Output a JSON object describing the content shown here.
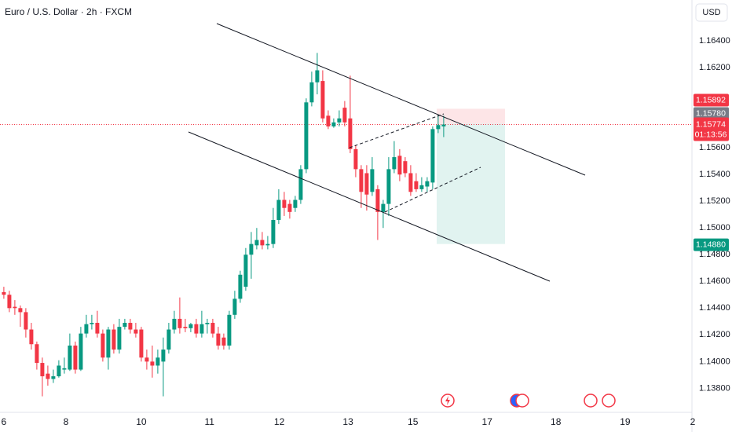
{
  "chart_data": {
    "type": "candlestick",
    "title": "Euro / U.S. Dollar · 2h · FXCM",
    "currency": "USD",
    "up_color": "#089981",
    "down_color": "#f23645",
    "grid": false,
    "open": [
      1.1452,
      1.145,
      1.1441,
      1.144,
      1.1437,
      1.1424,
      1.1413,
      1.1399,
      1.1391,
      1.1387,
      1.1389,
      1.1394,
      1.1394,
      1.1412,
      1.1394,
      1.1421,
      1.1428,
      1.1429,
      1.1421,
      1.1403,
      1.1424,
      1.1409,
      1.1426,
      1.1429,
      1.1424,
      1.1424,
      1.1403,
      1.14,
      1.1397,
      1.14,
      1.1409,
      1.1424,
      1.1432,
      1.1426,
      1.1425,
      1.1428,
      1.1421,
      1.1428,
      1.1429,
      1.1421,
      1.1418,
      1.1412,
      1.1435,
      1.1447,
      1.1456,
      1.148,
      1.1487,
      1.1491,
      1.1487,
      1.1488,
      1.1506,
      1.1521,
      1.1518,
      1.1515,
      1.1521,
      1.1544,
      1.1594,
      1.1609,
      1.161,
      1.1584,
      1.1576,
      1.1579,
      1.159,
      1.1582,
      1.1559,
      1.1544,
      1.1541,
      1.1527,
      1.1529,
      1.1512,
      1.1518,
      1.1544,
      1.1554,
      1.155,
      1.1541,
      1.1535,
      1.1529,
      1.1531,
      1.1534,
      1.1574,
      1.1576
    ],
    "high": [
      1.1456,
      1.1453,
      1.1446,
      1.1442,
      1.144,
      1.1429,
      1.1415,
      1.1403,
      1.1397,
      1.1394,
      1.1401,
      1.1403,
      1.1421,
      1.1415,
      1.1426,
      1.1435,
      1.1435,
      1.1438,
      1.1424,
      1.1426,
      1.1428,
      1.1432,
      1.1432,
      1.1432,
      1.1429,
      1.1426,
      1.1409,
      1.1412,
      1.1409,
      1.1418,
      1.1429,
      1.1438,
      1.1448,
      1.1432,
      1.1429,
      1.1432,
      1.1438,
      1.1432,
      1.1432,
      1.1426,
      1.1421,
      1.1438,
      1.1453,
      1.1468,
      1.1485,
      1.1497,
      1.15,
      1.1497,
      1.1494,
      1.1515,
      1.1529,
      1.1527,
      1.1521,
      1.1524,
      1.1547,
      1.1597,
      1.1617,
      1.1631,
      1.1618,
      1.1588,
      1.1582,
      1.1588,
      1.1595,
      1.1614,
      1.1562,
      1.1547,
      1.1547,
      1.1553,
      1.1532,
      1.1521,
      1.1553,
      1.1565,
      1.1559,
      1.1553,
      1.1547,
      1.1541,
      1.1538,
      1.1538,
      1.1576,
      1.1585,
      1.1584
    ],
    "low": [
      1.1447,
      1.1437,
      1.1435,
      1.1426,
      1.1418,
      1.1409,
      1.1394,
      1.1374,
      1.1382,
      1.1384,
      1.1388,
      1.1391,
      1.1393,
      1.1391,
      1.1393,
      1.1418,
      1.1424,
      1.1418,
      1.14,
      1.1394,
      1.1406,
      1.1406,
      1.1424,
      1.1421,
      1.1418,
      1.14,
      1.1394,
      1.1388,
      1.1391,
      1.1374,
      1.1406,
      1.1421,
      1.1421,
      1.1422,
      1.1422,
      1.1418,
      1.1418,
      1.1421,
      1.1418,
      1.1409,
      1.1409,
      1.1409,
      1.1432,
      1.1444,
      1.1453,
      1.1462,
      1.1484,
      1.1484,
      1.1484,
      1.1485,
      1.1503,
      1.1509,
      1.1507,
      1.1512,
      1.1518,
      1.1541,
      1.1591,
      1.16,
      1.1579,
      1.1574,
      1.1575,
      1.1576,
      1.1576,
      1.1556,
      1.1538,
      1.1515,
      1.1513,
      1.1524,
      1.1491,
      1.15,
      1.1509,
      1.1541,
      1.1535,
      1.1538,
      1.1524,
      1.1527,
      1.1527,
      1.1527,
      1.1529,
      1.1571,
      1.1568
    ],
    "close": [
      1.145,
      1.144,
      1.144,
      1.1437,
      1.1424,
      1.1413,
      1.1399,
      1.1389,
      1.1387,
      1.1389,
      1.1397,
      1.1395,
      1.1412,
      1.1394,
      1.1421,
      1.1428,
      1.1429,
      1.1421,
      1.1403,
      1.1424,
      1.1409,
      1.1426,
      1.1429,
      1.1424,
      1.1421,
      1.1403,
      1.14,
      1.1397,
      1.1403,
      1.1409,
      1.1424,
      1.1432,
      1.1425,
      1.1425,
      1.1428,
      1.1421,
      1.1428,
      1.1429,
      1.1421,
      1.1412,
      1.1412,
      1.1435,
      1.1447,
      1.1465,
      1.148,
      1.1488,
      1.1491,
      1.1487,
      1.1488,
      1.1506,
      1.1521,
      1.1515,
      1.1512,
      1.1521,
      1.1544,
      1.1594,
      1.1609,
      1.1618,
      1.1582,
      1.1576,
      1.1579,
      1.1582,
      1.1579,
      1.1559,
      1.1544,
      1.1527,
      1.1525,
      1.1544,
      1.1512,
      1.1518,
      1.1544,
      1.1553,
      1.154,
      1.1541,
      1.1527,
      1.1529,
      1.1532,
      1.1535,
      1.1574,
      1.1577,
      1.15774
    ],
    "xlim": [
      -0.7,
      125.3
    ],
    "xticks": [
      {
        "value": 0,
        "label": "6"
      },
      {
        "value": 11.3,
        "label": "8"
      },
      {
        "value": 25,
        "label": "10"
      },
      {
        "value": 37.4,
        "label": "11"
      },
      {
        "value": 50.1,
        "label": "12"
      },
      {
        "value": 62.6,
        "label": "13"
      },
      {
        "value": 74.4,
        "label": "15"
      },
      {
        "value": 87.9,
        "label": "17"
      },
      {
        "value": 100.4,
        "label": "18"
      },
      {
        "value": 113,
        "label": "19"
      },
      {
        "value": 125.3,
        "label": "2"
      }
    ],
    "ylim": [
      1.1362,
      1.16706
    ],
    "yticks": [
      {
        "value": 1.164,
        "label": "1.16400"
      },
      {
        "value": 1.162,
        "label": "1.16200"
      },
      {
        "value": 1.156,
        "label": "1.15600"
      },
      {
        "value": 1.154,
        "label": "1.15400"
      },
      {
        "value": 1.152,
        "label": "1.15200"
      },
      {
        "value": 1.15,
        "label": "1.15000"
      },
      {
        "value": 1.148,
        "label": "1.14800"
      },
      {
        "value": 1.146,
        "label": "1.14600"
      },
      {
        "value": 1.144,
        "label": "1.14400"
      },
      {
        "value": 1.142,
        "label": "1.14200"
      },
      {
        "value": 1.14,
        "label": "1.14000"
      },
      {
        "value": 1.138,
        "label": "1.13800"
      }
    ],
    "position": {
      "stop": 1.15892,
      "entry": {
        "value": 1.1578,
        "label": "1.15780"
      },
      "target": {
        "value": 1.1488,
        "label": "1.14880"
      }
    },
    "current": {
      "value": 1.15774,
      "countdown": "01:13:56"
    }
  }
}
